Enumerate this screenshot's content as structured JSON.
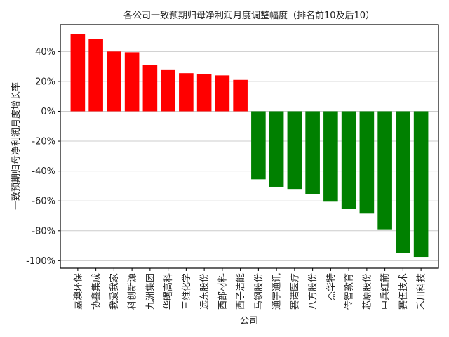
{
  "chart_data": {
    "type": "bar",
    "title": "各公司一致预期归母净利润月度调整幅度（排名前10及后10）",
    "xlabel": "公司",
    "ylabel": "一致预期归母净利润月度增长率",
    "categories": [
      "嘉澳环保",
      "协鑫集成",
      "我爱我家",
      "科创新源",
      "九洲集团",
      "华曙高科",
      "三维化学",
      "远东股份",
      "西部材料",
      "西子洁能",
      "马钢股份",
      "通宇通讯",
      "赛诺医疗",
      "八方股份",
      "杰华特",
      "传智教育",
      "芯原股份",
      "中兵红箭",
      "赛伍技术",
      "禾川科技"
    ],
    "values": [
      51.5,
      48.5,
      40.0,
      39.5,
      31.0,
      28.0,
      25.5,
      25.0,
      24.0,
      21.0,
      -45.5,
      -50.5,
      -52.0,
      -55.5,
      -60.5,
      -65.5,
      -68.5,
      -79.0,
      -95.0,
      -97.5
    ],
    "value_unit": "%",
    "ylim": [
      -105,
      58
    ],
    "yticks": [
      -100,
      -80,
      -60,
      -40,
      -20,
      0,
      20,
      40
    ],
    "ytick_labels": [
      "-100%",
      "-80%",
      "-60%",
      "-40%",
      "-20%",
      "0%",
      "20%",
      "40%"
    ],
    "grid": "horizontal",
    "colors": {
      "positive": "#ff0000",
      "negative": "#008000",
      "grid": "#cccccc",
      "axis": "#000000"
    }
  }
}
